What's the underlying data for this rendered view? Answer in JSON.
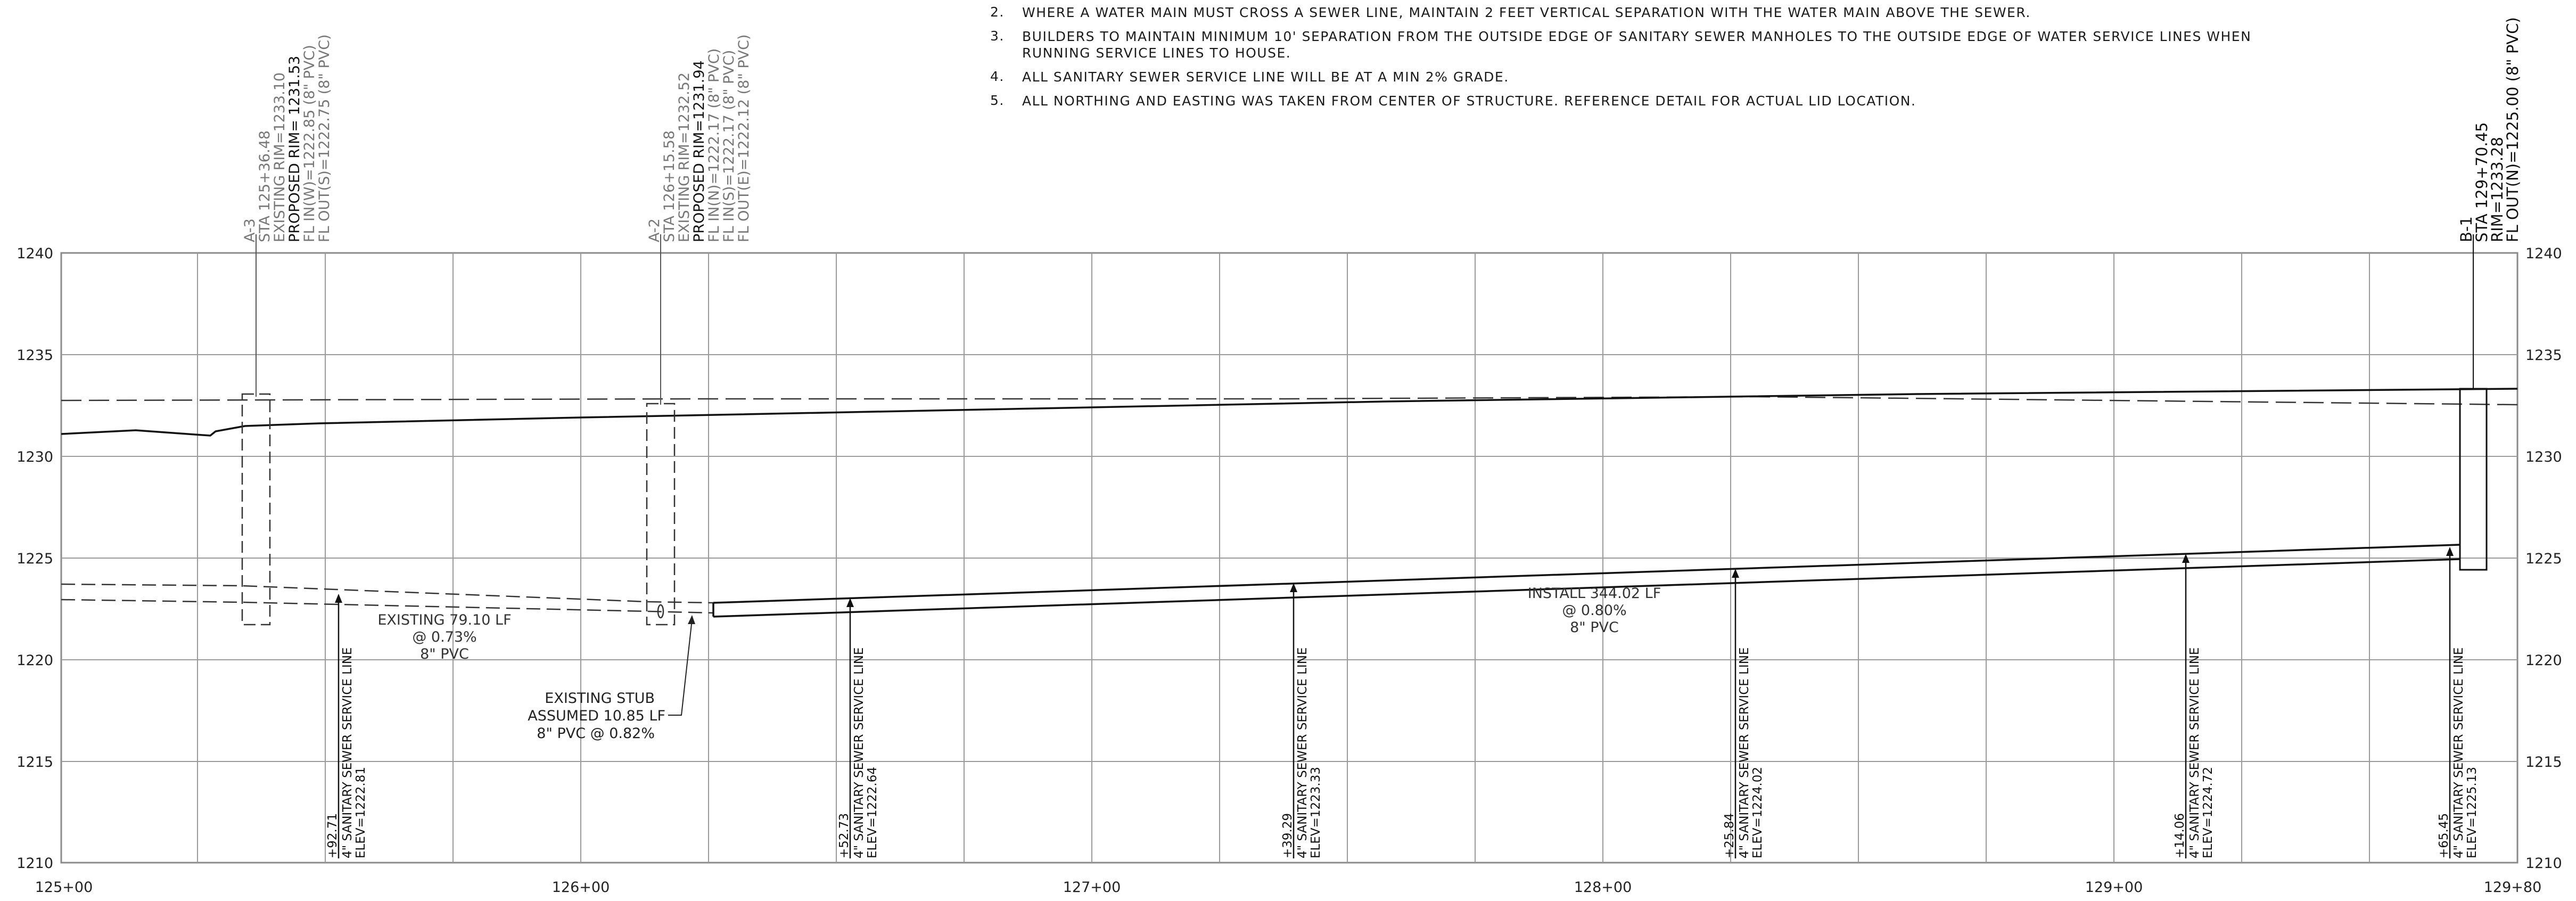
{
  "notes": [
    {
      "num": "2.",
      "text": "WHERE A WATER MAIN MUST CROSS A SEWER LINE, MAINTAIN 2 FEET VERTICAL SEPARATION WITH THE WATER MAIN ABOVE THE SEWER."
    },
    {
      "num": "3.",
      "text": "BUILDERS TO MAINTAIN MINIMUM 10' SEPARATION FROM THE OUTSIDE EDGE OF SANITARY SEWER MANHOLES TO THE OUTSIDE EDGE OF WATER SERVICE LINES WHEN RUNNING SERVICE LINES TO HOUSE."
    },
    {
      "num": "4.",
      "text": "ALL SANITARY SEWER SERVICE LINE WILL BE AT A MIN 2% GRADE."
    },
    {
      "num": "5.",
      "text": "ALL NORTHING AND EASTING WAS TAKEN FROM CENTER OF STRUCTURE. REFERENCE DETAIL FOR ACTUAL LID LOCATION."
    }
  ],
  "axis": {
    "elev_ticks": [
      "1240",
      "1235",
      "1230",
      "1225",
      "1220",
      "1215",
      "1210"
    ],
    "station_ticks": [
      "125+00",
      "126+00",
      "127+00",
      "128+00",
      "129+00",
      "129+80"
    ]
  },
  "structures": [
    {
      "lines": [
        "A-3",
        "STA 125+36.48",
        "EXISTING RIM=1233.10",
        "PROPOSED RIM= 1231.53",
        "FL IN(W)=1222.85 (8\" PVC)",
        "FL OUT(S)=1222.75 (8\" PVC)"
      ]
    },
    {
      "lines": [
        "A-2",
        "STA 126+15.58",
        "EXISTING RIM=1232.52",
        "PROPOSED RIM=1231.94",
        "FL IN(N)=1222.17 (8\" PVC)",
        "FL IN(S)=1222.17 (8\" PVC)",
        "FL OUT(E)=1222.12 (8\" PVC)"
      ]
    },
    {
      "lines": [
        "B-1",
        "STA 129+70.45",
        "RIM=1233.28",
        "FL OUT(N)=1225.00 (8\" PVC)"
      ]
    }
  ],
  "pipe_labels": [
    {
      "lines": [
        "EXISTING 79.10 LF",
        "@ 0.73%",
        "8\" PVC"
      ]
    },
    {
      "lines": [
        "EXISTING STUB",
        "ASSUMED 10.85 LF",
        "8\" PVC @ 0.82%"
      ]
    },
    {
      "lines": [
        "INSTALL 344.02 LF",
        "@ 0.80%",
        "8\" PVC"
      ]
    }
  ],
  "service_lines": [
    {
      "sta": "+92.71",
      "type": "4\" SANITARY SEWER SERVICE LINE",
      "elev": "ELEV=1222.81"
    },
    {
      "sta": "+52.73",
      "type": "4\" SANITARY SEWER SERVICE LINE",
      "elev": "ELEV=1222.64"
    },
    {
      "sta": "+39.29",
      "type": "4\" SANITARY SEWER SERVICE LINE",
      "elev": "ELEV=1223.33"
    },
    {
      "sta": "+25.84",
      "type": "4\" SANITARY SEWER SERVICE LINE",
      "elev": "ELEV=1224.02"
    },
    {
      "sta": "+14.06",
      "type": "4\" SANITARY SEWER SERVICE LINE",
      "elev": "ELEV=1224.72"
    },
    {
      "sta": "+65.45",
      "type": "4\" SANITARY SEWER SERVICE LINE",
      "elev": "ELEV=1225.13"
    }
  ]
}
